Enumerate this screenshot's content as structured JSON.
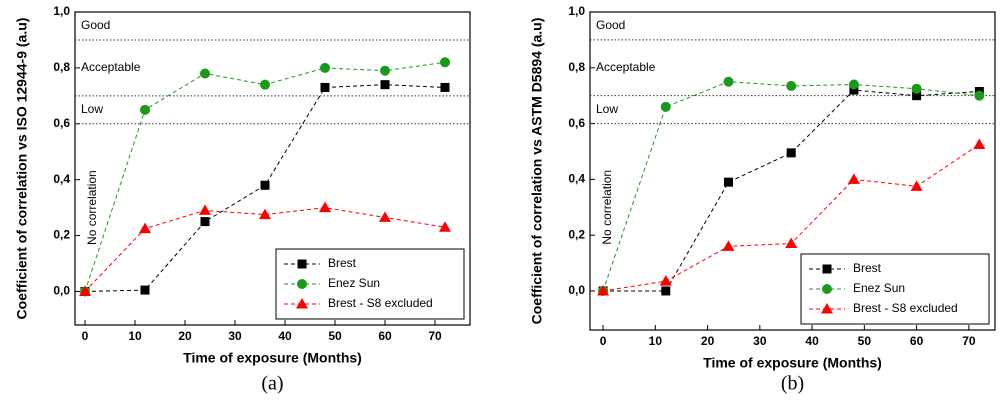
{
  "chart_data": [
    {
      "type": "line",
      "caption": "(a)",
      "x_label": "Time of exposure (Months)",
      "y_label": "Coefficient of correlation vs ISO 12944-9 (a.u)",
      "x": [
        0,
        12,
        24,
        36,
        48,
        60,
        72
      ],
      "series": [
        {
          "name": "Brest",
          "color": "#000000",
          "marker": "square",
          "values": [
            0,
            0.005,
            0.25,
            0.38,
            0.73,
            0.74,
            0.73
          ]
        },
        {
          "name": "Enez Sun",
          "color": "#1a9a1a",
          "marker": "circle",
          "values": [
            0,
            0.65,
            0.78,
            0.74,
            0.8,
            0.79,
            0.82
          ]
        },
        {
          "name": "Brest - S8 excluded",
          "color": "#ff0000",
          "marker": "triangle",
          "values": [
            0,
            0.225,
            0.29,
            0.275,
            0.3,
            0.265,
            0.23
          ]
        }
      ],
      "reference_lines": [
        0.9,
        0.7,
        0.6
      ],
      "annotations": [
        "Good",
        "Acceptable",
        "Low",
        "No correlation"
      ],
      "xlim": [
        -2,
        77
      ],
      "xticks": [
        0,
        10,
        20,
        30,
        40,
        50,
        60,
        70
      ],
      "ylim": [
        -0.12,
        1.0
      ],
      "yticks": [
        {
          "value": 0,
          "label": "0,0"
        },
        {
          "value": 0.2,
          "label": "0,2"
        },
        {
          "value": 0.4,
          "label": "0,4"
        },
        {
          "value": 0.6,
          "label": "0,6"
        },
        {
          "value": 0.8,
          "label": "0,8"
        },
        {
          "value": 1.0,
          "label": "1,0"
        }
      ],
      "legend": "lower right"
    },
    {
      "type": "line",
      "caption": "(b)",
      "x_label": "Time of exposure (Months)",
      "y_label": "Coefficient of correlation vs ASTM D5894 (a.u)",
      "x": [
        0,
        12,
        24,
        36,
        48,
        60,
        72
      ],
      "series": [
        {
          "name": "Brest",
          "color": "#000000",
          "marker": "square",
          "values": [
            0,
            0,
            0.39,
            0.495,
            0.72,
            0.7,
            0.715
          ]
        },
        {
          "name": "Enez Sun",
          "color": "#1a9a1a",
          "marker": "circle",
          "values": [
            0,
            0.66,
            0.75,
            0.735,
            0.74,
            0.725,
            0.7
          ]
        },
        {
          "name": "Brest - S8 excluded",
          "color": "#ff0000",
          "marker": "triangle",
          "values": [
            0,
            0.035,
            0.16,
            0.17,
            0.4,
            0.375,
            0.525
          ]
        }
      ],
      "reference_lines": [
        0.9,
        0.7,
        0.6
      ],
      "annotations": [
        "Good",
        "Acceptable",
        "Low",
        "No correlation"
      ],
      "xlim": [
        -2.5,
        75
      ],
      "xticks": [
        0,
        10,
        20,
        30,
        40,
        50,
        60,
        70
      ],
      "ylim": [
        -0.14,
        1.0
      ],
      "yticks": [
        {
          "value": 0,
          "label": "0,0"
        },
        {
          "value": 0.2,
          "label": "0,2"
        },
        {
          "value": 0.4,
          "label": "0,4"
        },
        {
          "value": 0.6,
          "label": "0,6"
        },
        {
          "value": 0.8,
          "label": "0,8"
        },
        {
          "value": 1.0,
          "label": "1,0"
        }
      ],
      "legend": "lower right"
    }
  ]
}
